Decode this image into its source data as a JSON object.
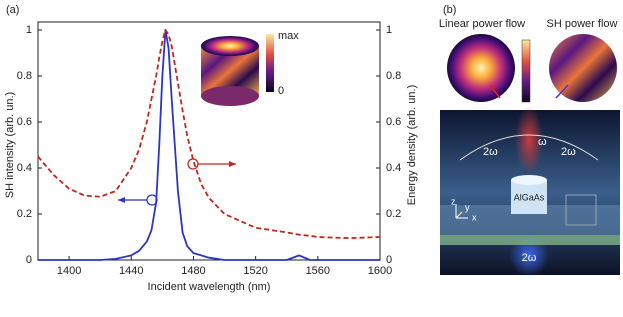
{
  "panel_a": {
    "label": "(a)",
    "inset_max": "max",
    "inset_min": "0"
  },
  "chart_data": {
    "type": "line",
    "xlabel": "Incident wavelength (nm)",
    "ylabel": "SH intensity (arb. un.)",
    "y2label": "Energy density (arb. un.)",
    "x": [
      1380,
      1390,
      1400,
      1410,
      1420,
      1430,
      1440,
      1445,
      1450,
      1453,
      1456,
      1458,
      1460,
      1462,
      1464,
      1466,
      1468,
      1470,
      1473,
      1476,
      1480,
      1485,
      1490,
      1500,
      1520,
      1540,
      1548,
      1555,
      1560,
      1580,
      1600
    ],
    "series": [
      {
        "color": "#2a35c2",
        "dash": false,
        "values": [
          0,
          0,
          0,
          0,
          0,
          0.005,
          0.02,
          0.04,
          0.08,
          0.13,
          0.25,
          0.5,
          0.8,
          1.0,
          0.92,
          0.7,
          0.5,
          0.3,
          0.12,
          0.06,
          0.03,
          0.02,
          0.01,
          0,
          0,
          0,
          0.02,
          0,
          0,
          0,
          0
        ]
      },
      {
        "color": "#c0281c",
        "dash": true,
        "axis": "y2",
        "values": [
          0.45,
          0.37,
          0.31,
          0.28,
          0.275,
          0.3,
          0.4,
          0.48,
          0.6,
          0.7,
          0.8,
          0.88,
          0.95,
          1.0,
          0.98,
          0.93,
          0.85,
          0.77,
          0.65,
          0.54,
          0.43,
          0.33,
          0.27,
          0.2,
          0.14,
          0.12,
          0.11,
          0.105,
          0.1,
          0.095,
          0.1
        ]
      }
    ],
    "xlim": [
      1380,
      1600
    ],
    "xticks": [
      1400,
      1440,
      1480,
      1520,
      1560,
      1600
    ],
    "ylim": [
      0,
      1
    ],
    "yticks": [
      0,
      0.2,
      0.4,
      0.6,
      0.8,
      1
    ],
    "y2lim": [
      0,
      1
    ],
    "y2ticks": [
      0,
      0.2,
      0.4,
      0.6,
      0.8,
      1
    ]
  },
  "panel_b": {
    "label": "(b)",
    "linear_title": "Linear power flow",
    "sh_title": "SH power flow",
    "sh_left": "2ω",
    "sh_right": "2ω",
    "pump": "ω",
    "sh_bottom": "2ω",
    "material": "AlGaAs",
    "axis_z": "z",
    "axis_y": "y",
    "axis_x": "x"
  }
}
